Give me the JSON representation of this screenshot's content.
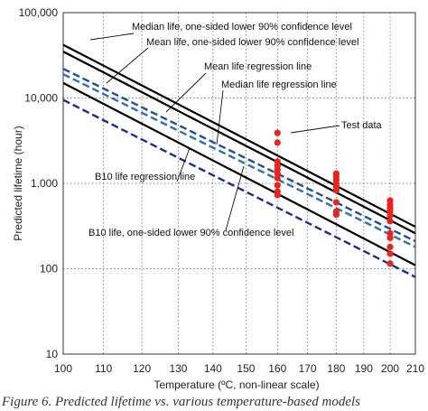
{
  "caption": "Figure 6. Predicted lifetime vs. various temperature-based models",
  "chart_data": {
    "type": "line",
    "xlabel": "Temperature (ºC, non-linear scale)",
    "ylabel": "Predicted lifetime (hour)",
    "x_scale": "reciprocal",
    "y_scale": "log",
    "xlim": [
      100,
      210
    ],
    "ylim": [
      10,
      100000
    ],
    "grid": true,
    "x_ticks": [
      100,
      110,
      120,
      130,
      140,
      150,
      160,
      170,
      180,
      190,
      200,
      210
    ],
    "x_tick_labels": [
      "100",
      "110",
      "120",
      "130",
      "140",
      "150",
      "160",
      "170",
      "180",
      "190",
      "200",
      "210"
    ],
    "y_ticks": [
      10,
      100,
      1000,
      10000,
      100000
    ],
    "y_tick_labels": [
      "10",
      "100",
      "1,000",
      "10,000",
      "100,000"
    ],
    "series": [
      {
        "name": "Median life, one-sided lower 90% confidence level",
        "style": "solid",
        "color": "#000000",
        "x": [
          100,
          210
        ],
        "y": [
          42000,
          310
        ]
      },
      {
        "name": "Mean life, one-sided lower 90% confidence level",
        "style": "solid",
        "color": "#000000",
        "x": [
          100,
          210
        ],
        "y": [
          35000,
          260
        ]
      },
      {
        "name": "Mean life regression line",
        "style": "dashed",
        "color": "#1f4e96",
        "x": [
          100,
          210
        ],
        "y": [
          22000,
          210
        ]
      },
      {
        "name": "Median life regression line",
        "style": "dashed",
        "color": "#2e6fb0",
        "x": [
          100,
          210
        ],
        "y": [
          19000,
          180
        ]
      },
      {
        "name": "B10 life regression line",
        "style": "solid",
        "color": "#000000",
        "x": [
          100,
          210
        ],
        "y": [
          15000,
          110
        ]
      },
      {
        "name": "B10 life, one-sided lower 90% confidence level",
        "style": "dashed",
        "color": "#1b2f8a",
        "x": [
          100,
          210
        ],
        "y": [
          9500,
          80
        ]
      }
    ],
    "test_data": {
      "name": "Test data",
      "color": "#e8241c",
      "points": [
        {
          "x": 160,
          "y": 3900
        },
        {
          "x": 160,
          "y": 3000
        },
        {
          "x": 160,
          "y": 1800
        },
        {
          "x": 160,
          "y": 1600
        },
        {
          "x": 160,
          "y": 1450
        },
        {
          "x": 160,
          "y": 1300
        },
        {
          "x": 160,
          "y": 1150
        },
        {
          "x": 160,
          "y": 950
        },
        {
          "x": 160,
          "y": 800
        },
        {
          "x": 160,
          "y": 730
        },
        {
          "x": 180,
          "y": 1300
        },
        {
          "x": 180,
          "y": 1200
        },
        {
          "x": 180,
          "y": 1100
        },
        {
          "x": 180,
          "y": 1000
        },
        {
          "x": 180,
          "y": 920
        },
        {
          "x": 180,
          "y": 830
        },
        {
          "x": 180,
          "y": 600
        },
        {
          "x": 180,
          "y": 470
        },
        {
          "x": 180,
          "y": 430
        },
        {
          "x": 200,
          "y": 630
        },
        {
          "x": 200,
          "y": 560
        },
        {
          "x": 200,
          "y": 510
        },
        {
          "x": 200,
          "y": 470
        },
        {
          "x": 200,
          "y": 420
        },
        {
          "x": 200,
          "y": 360
        },
        {
          "x": 200,
          "y": 260
        },
        {
          "x": 200,
          "y": 230
        },
        {
          "x": 200,
          "y": 180
        },
        {
          "x": 200,
          "y": 150
        },
        {
          "x": 200,
          "y": 115
        }
      ]
    },
    "annotations": [
      "Median life, one-sided lower 90% confidence level",
      "Mean life, one-sided lower 90% confidence level",
      "Mean life regression line",
      "Median life regression line",
      "Test data",
      "B10 life regression line",
      "B10 life, one-sided lower 90% confidence level"
    ]
  }
}
